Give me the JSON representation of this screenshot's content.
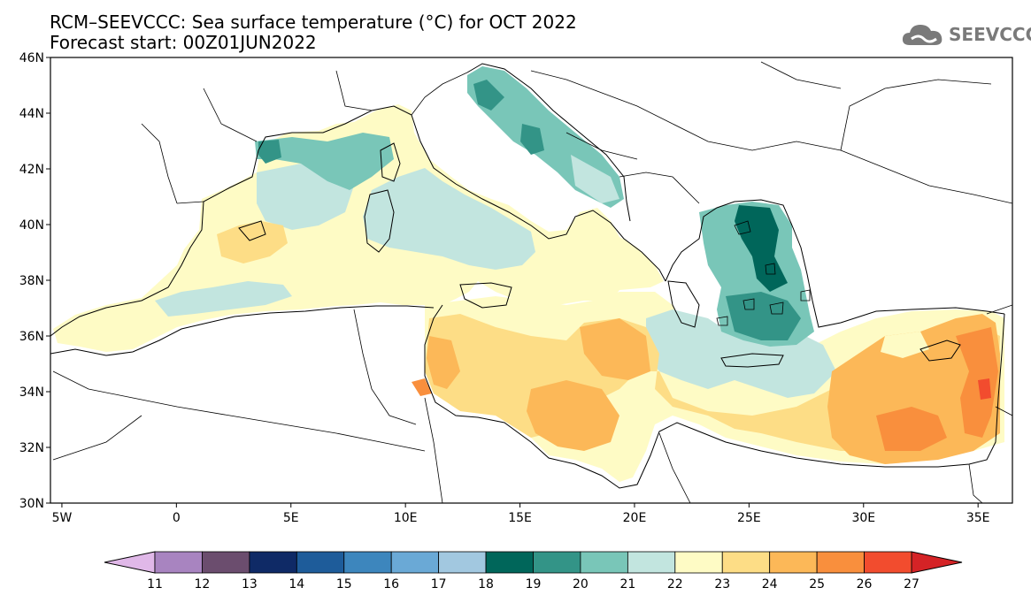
{
  "title": {
    "line1": "RCM–SEEVCCC: Sea surface temperature (°C) for OCT 2022",
    "line2": "Forecast start: 00Z01JUN2022"
  },
  "logo": {
    "text": "SEEVCCC",
    "icon": "cloud-icon",
    "color": "#7a7a7a"
  },
  "map": {
    "lon_range": [
      -5.5,
      36.5
    ],
    "lat_range": [
      30,
      46
    ],
    "lon_ticks": [
      {
        "value": -5,
        "label": "5W"
      },
      {
        "value": 0,
        "label": "0"
      },
      {
        "value": 5,
        "label": "5E"
      },
      {
        "value": 10,
        "label": "10E"
      },
      {
        "value": 15,
        "label": "15E"
      },
      {
        "value": 20,
        "label": "20E"
      },
      {
        "value": 25,
        "label": "25E"
      },
      {
        "value": 30,
        "label": "30E"
      },
      {
        "value": 35,
        "label": "35E"
      }
    ],
    "lat_ticks": [
      {
        "value": 30,
        "label": "30N"
      },
      {
        "value": 32,
        "label": "32N"
      },
      {
        "value": 34,
        "label": "34N"
      },
      {
        "value": 36,
        "label": "36N"
      },
      {
        "value": 38,
        "label": "38N"
      },
      {
        "value": 40,
        "label": "40N"
      },
      {
        "value": 42,
        "label": "42N"
      },
      {
        "value": 44,
        "label": "44N"
      },
      {
        "value": 46,
        "label": "46N"
      }
    ]
  },
  "colorbar": {
    "bins": [
      {
        "label": "11",
        "color": "#a884c0"
      },
      {
        "label": "12",
        "color": "#6b4d6e"
      },
      {
        "label": "13",
        "color": "#0f2a66"
      },
      {
        "label": "14",
        "color": "#1e5c9a"
      },
      {
        "label": "15",
        "color": "#3d86bd"
      },
      {
        "label": "16",
        "color": "#6aa9d6"
      },
      {
        "label": "17",
        "color": "#a2c8e0"
      },
      {
        "label": "18",
        "color": "#00665a"
      },
      {
        "label": "19",
        "color": "#339487"
      },
      {
        "label": "20",
        "color": "#79c6b8"
      },
      {
        "label": "21",
        "color": "#c2e5df"
      },
      {
        "label": "22",
        "color": "#fefbc5"
      },
      {
        "label": "23",
        "color": "#fddd86"
      },
      {
        "label": "24",
        "color": "#fcb858"
      },
      {
        "label": "25",
        "color": "#f98f3d"
      },
      {
        "label": "26",
        "color": "#f24c2e"
      },
      {
        "label": "27",
        "color": ""
      }
    ],
    "low_color": "#e0b8e8",
    "high_color": "#d52326"
  }
}
